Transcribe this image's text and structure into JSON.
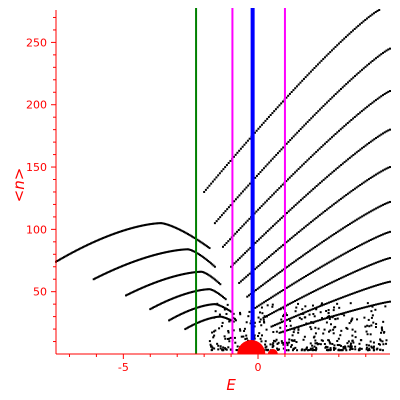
{
  "chart_data": {
    "type": "scatter",
    "title": "",
    "xlabel": "E",
    "ylabel": "<n>",
    "xlim": [
      -7.5,
      4.9
    ],
    "ylim": [
      0,
      276
    ],
    "xticks": [
      -5,
      0
    ],
    "yticks": [
      50,
      100,
      150,
      200,
      250
    ],
    "grid": false,
    "axis_color": "#ff0000",
    "point_color": "#000000",
    "vertical_lines": [
      {
        "x": -2.3,
        "color": "#008000"
      },
      {
        "x": -0.95,
        "color": "#ff00ff"
      },
      {
        "x": -0.2,
        "color": "#0000ff"
      },
      {
        "x": 1.0,
        "color": "#ff00ff"
      }
    ],
    "bands": [
      {
        "x_start": -7.5,
        "y_start": 74,
        "x_peak": -3.6,
        "y_peak": 105,
        "x_end": -1.8,
        "y_end": 85
      },
      {
        "x_start": -6.1,
        "y_start": 60,
        "x_peak": -2.6,
        "y_peak": 84,
        "x_end": -1.6,
        "y_end": 70
      },
      {
        "x_start": -4.9,
        "y_start": 47,
        "x_peak": -2.1,
        "y_peak": 66,
        "x_end": -1.4,
        "y_end": 56
      },
      {
        "x_start": -4.0,
        "y_start": 36,
        "x_peak": -1.8,
        "y_peak": 52,
        "x_end": -1.2,
        "y_end": 44
      },
      {
        "x_start": -3.3,
        "y_start": 27,
        "x_peak": -1.6,
        "y_peak": 40,
        "x_end": -1.0,
        "y_end": 34
      },
      {
        "x_start": -2.7,
        "y_start": 20,
        "x_peak": -1.4,
        "y_peak": 30,
        "x_end": -0.9,
        "y_end": 26
      }
    ],
    "rising_series": [
      {
        "x_start": -2.0,
        "y_start": 130,
        "x_end": 4.5,
        "y_end": 276
      },
      {
        "x_start": -1.6,
        "y_start": 105,
        "x_end": 4.9,
        "y_end": 245
      },
      {
        "x_start": -1.3,
        "y_start": 86,
        "x_end": 4.9,
        "y_end": 211
      },
      {
        "x_start": -1.0,
        "y_start": 70,
        "x_end": 4.9,
        "y_end": 180
      },
      {
        "x_start": -0.7,
        "y_start": 57,
        "x_end": 4.9,
        "y_end": 150
      },
      {
        "x_start": -0.4,
        "y_start": 46,
        "x_end": 4.9,
        "y_end": 122
      },
      {
        "x_start": -0.1,
        "y_start": 37,
        "x_end": 4.9,
        "y_end": 98
      },
      {
        "x_start": 0.2,
        "y_start": 29,
        "x_end": 4.9,
        "y_end": 77
      },
      {
        "x_start": 0.5,
        "y_start": 22,
        "x_end": 4.9,
        "y_end": 58
      },
      {
        "x_start": 0.8,
        "y_start": 17,
        "x_end": 4.9,
        "y_end": 42
      }
    ],
    "red_markers": [
      {
        "x": -0.25,
        "y": 0,
        "size": "large"
      },
      {
        "x": 0.55,
        "y": 0,
        "size": "small"
      }
    ]
  }
}
